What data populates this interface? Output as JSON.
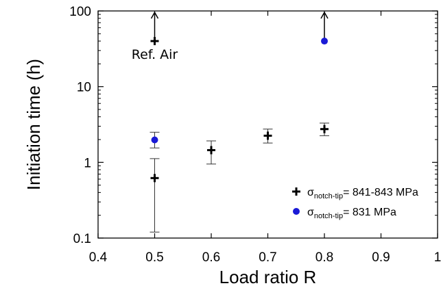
{
  "chart_data": {
    "type": "scatter",
    "xlabel": "Load ratio R",
    "ylabel": "Initiation time (h)",
    "xlim": [
      0.4,
      1.0
    ],
    "ylim": [
      0.1,
      100
    ],
    "yscale": "log",
    "grid": false,
    "legend_position": "bottom-right",
    "x_ticks": [
      0.4,
      0.5,
      0.6,
      0.7,
      0.8,
      0.9,
      1.0
    ],
    "x_tick_labels": [
      "0.4",
      "0.5",
      "0.6",
      "0.7",
      "0.8",
      "0.9",
      "1"
    ],
    "y_ticks": [
      0.1,
      1,
      10,
      100
    ],
    "y_tick_labels": [
      "0.1",
      "1",
      "10",
      "100"
    ],
    "series": [
      {
        "legend_main": "σ",
        "legend_sub": "notch-tip",
        "legend_value": "= 841-843 MPa",
        "marker": "plus",
        "color": "#000000",
        "points": [
          {
            "x": 0.5,
            "y": 0.62,
            "err_low": 0.12,
            "err_high": 1.12
          },
          {
            "x": 0.6,
            "y": 1.45,
            "err_low": 0.95,
            "err_high": 1.92
          },
          {
            "x": 0.7,
            "y": 2.25,
            "err_low": 1.8,
            "err_high": 2.75
          },
          {
            "x": 0.8,
            "y": 2.75,
            "err_low": 2.25,
            "err_high": 3.3
          },
          {
            "x": 0.5,
            "y": 40,
            "arrow_up": true
          }
        ]
      },
      {
        "legend_main": "σ",
        "legend_sub": "notch-tip",
        "legend_value": "= 831 MPa",
        "marker": "circle",
        "color": "#1a1ad6",
        "points": [
          {
            "x": 0.5,
            "y": 1.98,
            "err_low": 1.55,
            "err_high": 2.5
          },
          {
            "x": 0.8,
            "y": 40,
            "arrow_up": true
          }
        ]
      }
    ],
    "annotations": [
      {
        "text": "Ref. Air",
        "x": 0.5,
        "y": 40
      }
    ]
  }
}
